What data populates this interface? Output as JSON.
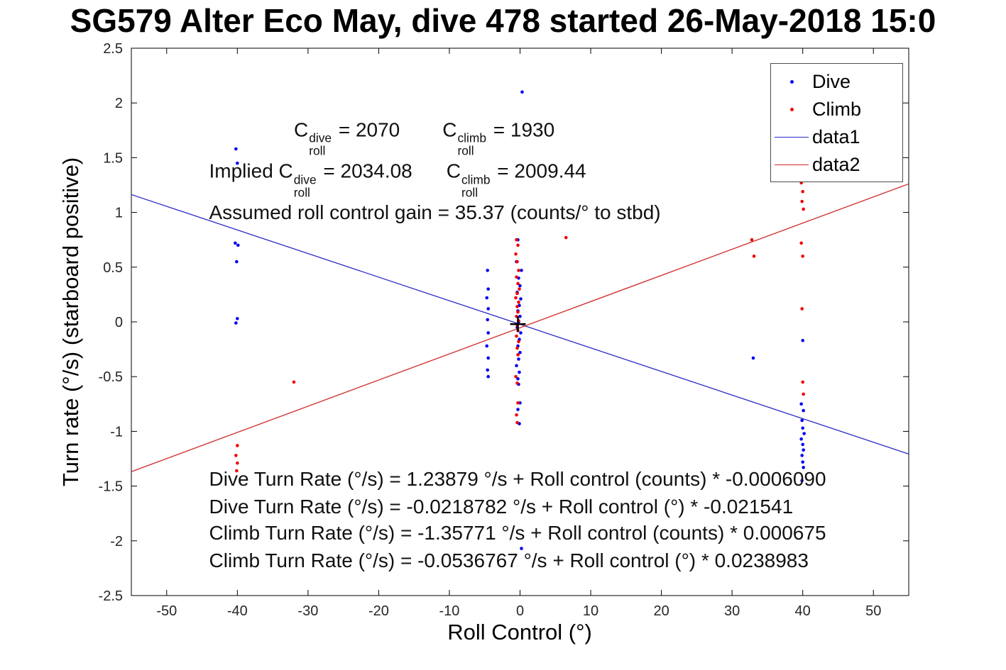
{
  "title": "SG579 Alter Eco May, dive 478 started 26-May-2018 15:0",
  "chart_data": {
    "type": "scatter",
    "xlabel": "Roll Control (°)",
    "ylabel": "Turn rate (°/s) (starboard positive)",
    "xlim": [
      -55,
      55
    ],
    "ylim": [
      -2.5,
      2.5
    ],
    "xticks": [
      -50,
      -40,
      -30,
      -20,
      -10,
      0,
      10,
      20,
      30,
      40,
      50
    ],
    "yticks": [
      -2.5,
      -2,
      -1.5,
      -1,
      -0.5,
      0,
      0.5,
      1,
      1.5,
      2,
      2.5
    ],
    "grid": false,
    "legend_position": "northeast",
    "series": [
      {
        "name": "Dive",
        "kind": "scatter",
        "color": "#0000f0",
        "marker": "dot",
        "points": [
          [
            -40.2,
            1.58
          ],
          [
            -40.0,
            1.45
          ],
          [
            -40.3,
            0.72
          ],
          [
            -39.9,
            0.7
          ],
          [
            -40.1,
            0.55
          ],
          [
            -40.0,
            0.03
          ],
          [
            -40.2,
            -0.01
          ],
          [
            -4.6,
            0.47
          ],
          [
            -4.5,
            0.3
          ],
          [
            -4.7,
            0.22
          ],
          [
            -4.5,
            0.12
          ],
          [
            -4.6,
            0.02
          ],
          [
            -4.5,
            -0.1
          ],
          [
            -4.7,
            -0.22
          ],
          [
            -4.5,
            -0.33
          ],
          [
            -4.6,
            -0.44
          ],
          [
            -4.5,
            -0.5
          ],
          [
            0.3,
            2.1
          ],
          [
            -0.3,
            0.75
          ],
          [
            -0.5,
            0.55
          ],
          [
            0.2,
            0.47
          ],
          [
            -0.2,
            0.4
          ],
          [
            0.0,
            0.33
          ],
          [
            -0.4,
            0.27
          ],
          [
            0.1,
            0.21
          ],
          [
            -0.1,
            0.15
          ],
          [
            -0.3,
            0.1
          ],
          [
            0.0,
            0.05
          ],
          [
            -0.2,
            0.0
          ],
          [
            -0.4,
            -0.05
          ],
          [
            0.1,
            -0.1
          ],
          [
            -0.1,
            -0.16
          ],
          [
            -0.3,
            -0.22
          ],
          [
            0.0,
            -0.28
          ],
          [
            -0.2,
            -0.34
          ],
          [
            -0.5,
            -0.4
          ],
          [
            -0.1,
            -0.46
          ],
          [
            -0.3,
            -0.52
          ],
          [
            -0.2,
            -0.57
          ],
          [
            0.0,
            -0.74
          ],
          [
            -0.3,
            -0.8
          ],
          [
            -0.1,
            -0.93
          ],
          [
            0.2,
            -2.07
          ],
          [
            33.0,
            -0.33
          ],
          [
            40.0,
            -0.17
          ],
          [
            39.8,
            -0.75
          ],
          [
            40.1,
            -0.81
          ],
          [
            39.9,
            -0.9
          ],
          [
            40.0,
            -0.97
          ],
          [
            40.2,
            -1.02
          ],
          [
            39.8,
            -1.07
          ],
          [
            40.0,
            -1.12
          ],
          [
            40.1,
            -1.17
          ],
          [
            39.9,
            -1.22
          ],
          [
            40.0,
            -1.28
          ],
          [
            40.1,
            -1.33
          ],
          [
            39.9,
            -1.45
          ]
        ]
      },
      {
        "name": "Climb",
        "kind": "scatter",
        "color": "#f00000",
        "marker": "dot",
        "points": [
          [
            -40.0,
            -1.13
          ],
          [
            -40.2,
            -1.22
          ],
          [
            -40.0,
            -1.29
          ],
          [
            -40.1,
            -1.36
          ],
          [
            -32.0,
            -0.55
          ],
          [
            -0.5,
            0.75
          ],
          [
            -0.3,
            0.7
          ],
          [
            -0.6,
            0.62
          ],
          [
            -0.4,
            0.55
          ],
          [
            -0.2,
            0.47
          ],
          [
            -0.5,
            0.41
          ],
          [
            -0.3,
            0.35
          ],
          [
            -0.1,
            0.3
          ],
          [
            -0.4,
            0.26
          ],
          [
            -0.6,
            0.22
          ],
          [
            -0.2,
            0.18
          ],
          [
            -0.4,
            0.14
          ],
          [
            -0.3,
            0.09
          ],
          [
            -0.5,
            0.05
          ],
          [
            -0.2,
            0.01
          ],
          [
            -0.4,
            -0.03
          ],
          [
            -0.3,
            -0.08
          ],
          [
            -0.5,
            -0.13
          ],
          [
            -0.2,
            -0.18
          ],
          [
            -0.4,
            -0.24
          ],
          [
            -0.3,
            -0.3
          ],
          [
            -0.6,
            -0.5
          ],
          [
            -0.4,
            -0.56
          ],
          [
            -0.3,
            -0.74
          ],
          [
            -0.5,
            -0.85
          ],
          [
            -0.4,
            -0.92
          ],
          [
            6.5,
            0.77
          ],
          [
            32.8,
            0.75
          ],
          [
            33.1,
            0.6
          ],
          [
            39.8,
            1.27
          ],
          [
            40.0,
            1.19
          ],
          [
            39.9,
            1.1
          ],
          [
            40.1,
            1.03
          ],
          [
            39.8,
            0.72
          ],
          [
            40.0,
            0.6
          ],
          [
            39.9,
            0.12
          ],
          [
            40.0,
            -0.55
          ],
          [
            40.1,
            -0.66
          ]
        ]
      },
      {
        "name": "data1",
        "kind": "line",
        "color": "#2828c8",
        "endpoints": [
          [
            -55,
            1.163
          ],
          [
            55,
            -1.207
          ]
        ]
      },
      {
        "name": "data2",
        "kind": "line",
        "color": "#d02828",
        "endpoints": [
          [
            -55,
            -1.368
          ],
          [
            55,
            1.261
          ]
        ]
      }
    ],
    "origin_marker": {
      "x": -0.3,
      "y": -0.02,
      "shape": "plus",
      "color": "#000000"
    }
  },
  "annotations": {
    "coeff_lines": [
      {
        "x": -32,
        "y": 1.68,
        "segments": [
          {
            "t": "C"
          },
          {
            "sup": "dive",
            "sub": "roll"
          },
          {
            "t": " = 2070"
          },
          {
            "gap": 60
          },
          {
            "t": "C"
          },
          {
            "sup": "climb",
            "sub": "roll"
          },
          {
            "t": " = 1930"
          }
        ]
      },
      {
        "x": -44,
        "y": 1.3,
        "segments": [
          {
            "t": "Implied C"
          },
          {
            "sup": "dive",
            "sub": "roll"
          },
          {
            "t": " = 2034.08"
          },
          {
            "gap": 48
          },
          {
            "t": "C"
          },
          {
            "sup": "climb",
            "sub": "roll"
          },
          {
            "t": " = 2009.44"
          }
        ]
      },
      {
        "x": -44,
        "y": 1.0,
        "segments": [
          {
            "t": "Assumed roll control gain = 35.37 (counts/° to stbd)"
          }
        ]
      }
    ],
    "fit_lines": [
      {
        "x": -44,
        "y": -1.44,
        "text": "Dive Turn Rate (°/s) = 1.23879 °/s + Roll control (counts) * -0.0006090"
      },
      {
        "x": -44,
        "y": -1.69,
        "text": "Dive Turn Rate (°/s) = -0.0218782 °/s + Roll control (°) * -0.021541"
      },
      {
        "x": -44,
        "y": -1.93,
        "text": "Climb Turn Rate (°/s) = -1.35771 °/s + Roll control (counts) * 0.000675"
      },
      {
        "x": -44,
        "y": -2.18,
        "text": "Climb Turn Rate (°/s) = -0.0536767 °/s + Roll control (°) * 0.0238983"
      }
    ]
  }
}
